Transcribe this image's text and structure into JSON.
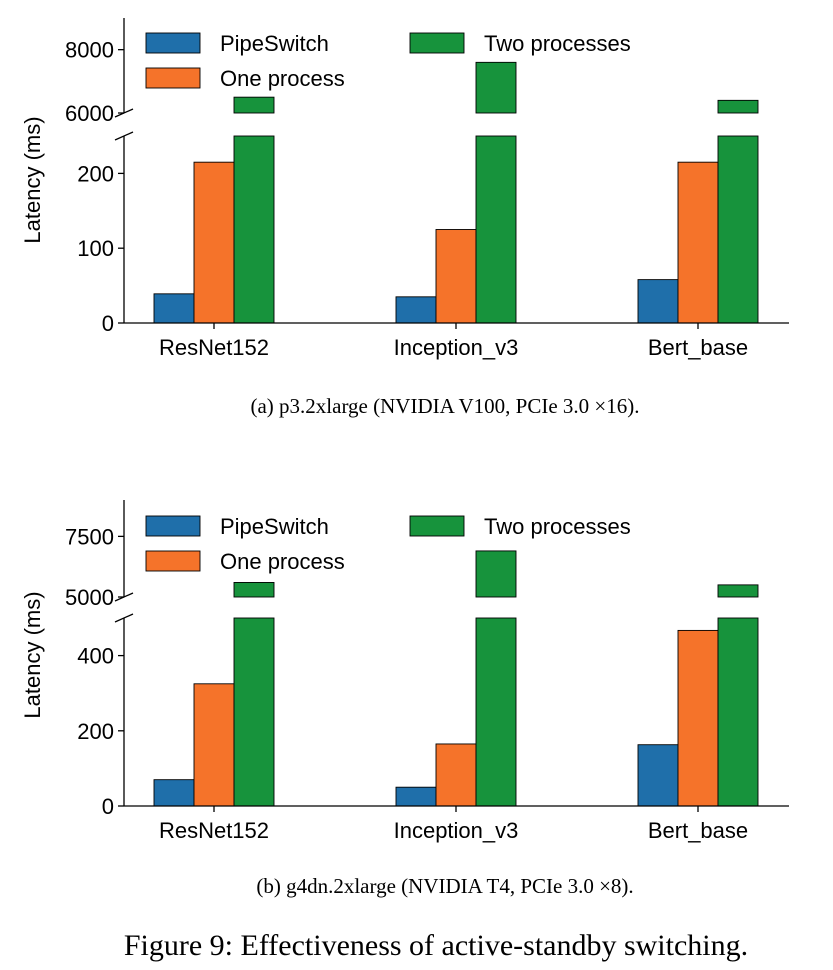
{
  "colors": {
    "PipeSwitch": "#1f6faa",
    "One process": "#f5732a",
    "Two processes": "#17933c"
  },
  "figure_caption": "Figure 9: Effectiveness of active-standby switching.",
  "chart_data": [
    {
      "type": "bar",
      "caption": "(a)  p3.2xlarge (NVIDIA V100, PCIe 3.0 ×16).",
      "ylabel": "Latency (ms)",
      "categories": [
        "ResNet152",
        "Inception_v3",
        "Bert_base"
      ],
      "series": [
        {
          "name": "PipeSwitch",
          "values": [
            39,
            35,
            58
          ]
        },
        {
          "name": "One process",
          "values": [
            215,
            125,
            215
          ]
        },
        {
          "name": "Two processes",
          "values": [
            6500,
            7600,
            6400
          ]
        }
      ],
      "broken_axis": true,
      "lower_ylim": [
        0,
        250
      ],
      "lower_ticks": [
        0,
        100,
        200
      ],
      "upper_ylim": [
        6000,
        9000
      ],
      "upper_ticks": [
        6000,
        8000
      ],
      "legend_position": "top-left"
    },
    {
      "type": "bar",
      "caption": "(b)  g4dn.2xlarge (NVIDIA T4, PCIe 3.0 ×8).",
      "ylabel": "Latency (ms)",
      "categories": [
        "ResNet152",
        "Inception_v3",
        "Bert_base"
      ],
      "series": [
        {
          "name": "PipeSwitch",
          "values": [
            70,
            50,
            163
          ]
        },
        {
          "name": "One process",
          "values": [
            325,
            165,
            467
          ]
        },
        {
          "name": "Two processes",
          "values": [
            5600,
            6900,
            5500
          ]
        }
      ],
      "broken_axis": true,
      "lower_ylim": [
        0,
        500
      ],
      "lower_ticks": [
        0,
        200,
        400
      ],
      "upper_ylim": [
        5000,
        9000
      ],
      "upper_ticks": [
        5000,
        7500
      ],
      "legend_position": "top-left"
    }
  ]
}
